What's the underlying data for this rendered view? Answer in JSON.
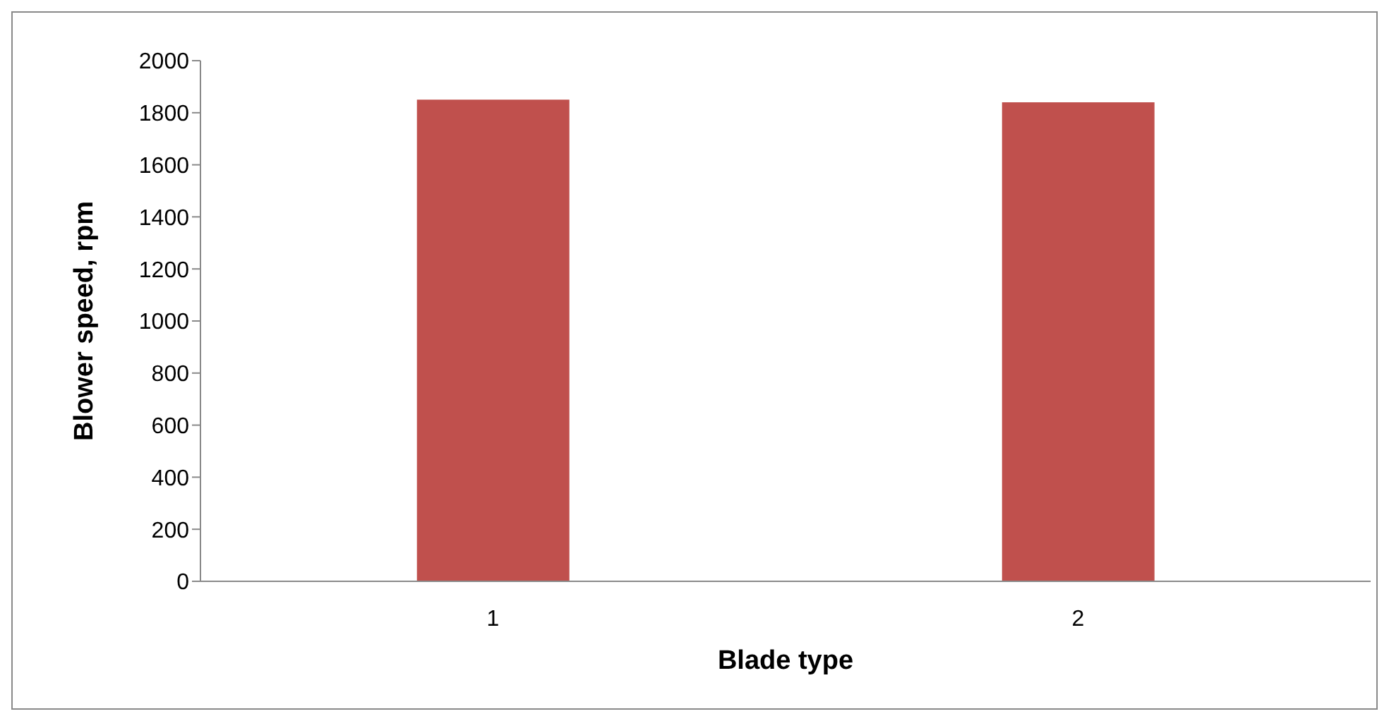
{
  "chart_data": {
    "type": "bar",
    "xlabel": "Blade type",
    "ylabel": "Blower speed, rpm",
    "categories": [
      "1",
      "2"
    ],
    "values": [
      1850,
      1840
    ],
    "color": "#c0504d",
    "ylim": [
      0,
      2000
    ],
    "yticks": [
      0,
      200,
      400,
      600,
      800,
      1000,
      1200,
      1400,
      1600,
      1800,
      2000
    ],
    "grid": false,
    "legend": false
  }
}
